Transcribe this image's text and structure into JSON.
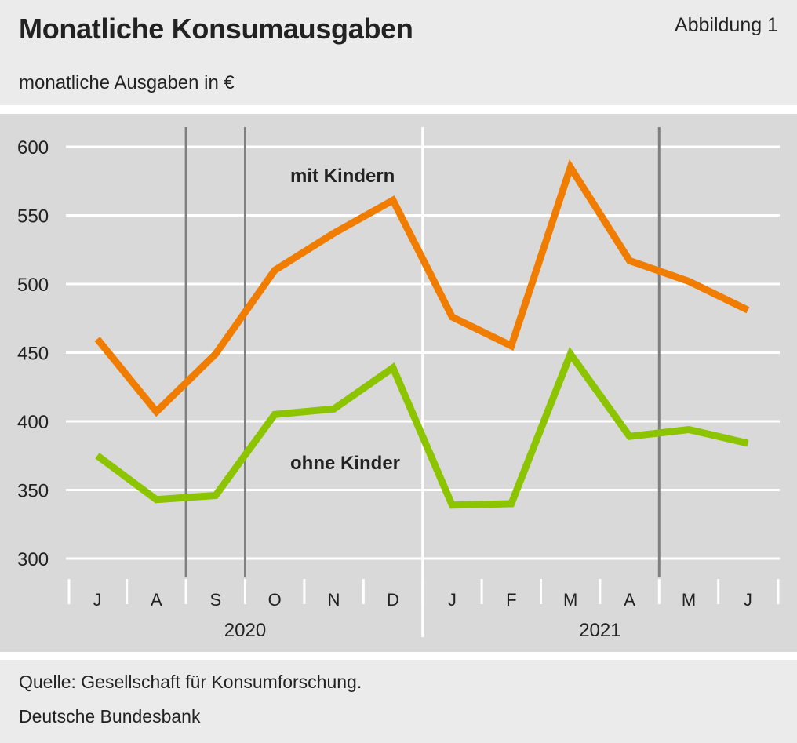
{
  "header": {
    "title": "Monatliche Konsumausgaben",
    "figure_label": "Abbildung 1",
    "subtitle": "monatliche Ausgaben in €"
  },
  "footer": {
    "source": "Quelle: Gesellschaft für Konsumforschung.",
    "publisher": "Deutsche Bundesbank"
  },
  "colors": {
    "header_bg": "#ebebeb",
    "plot_bg": "#d9d9d9",
    "mit_kindern": "#f07c00",
    "ohne_kinder": "#8cc400",
    "gridline": "#ffffff",
    "marker_line": "#808080"
  },
  "chart_data": {
    "type": "line",
    "title": "Monatliche Konsumausgaben",
    "ylabel": "monatliche Ausgaben in €",
    "ylim": [
      300,
      600
    ],
    "yticks": [
      300,
      350,
      400,
      450,
      500,
      550,
      600
    ],
    "categories": [
      "J",
      "A",
      "S",
      "O",
      "N",
      "D",
      "J",
      "F",
      "M",
      "A",
      "M",
      "J"
    ],
    "years": [
      {
        "label": "2020",
        "months": 6
      },
      {
        "label": "2021",
        "months": 6
      }
    ],
    "vertical_markers_after_month_index": [
      2,
      3,
      10
    ],
    "series": [
      {
        "name": "mit Kindern",
        "color": "#f07c00",
        "values": [
          460,
          407,
          449,
          510,
          537,
          561,
          476,
          455,
          585,
          517,
          502,
          481
        ]
      },
      {
        "name": "ohne Kinder",
        "color": "#8cc400",
        "values": [
          375,
          343,
          346,
          405,
          409,
          439,
          339,
          340,
          449,
          389,
          394,
          384
        ]
      }
    ],
    "grid": true,
    "legend": "inline"
  }
}
